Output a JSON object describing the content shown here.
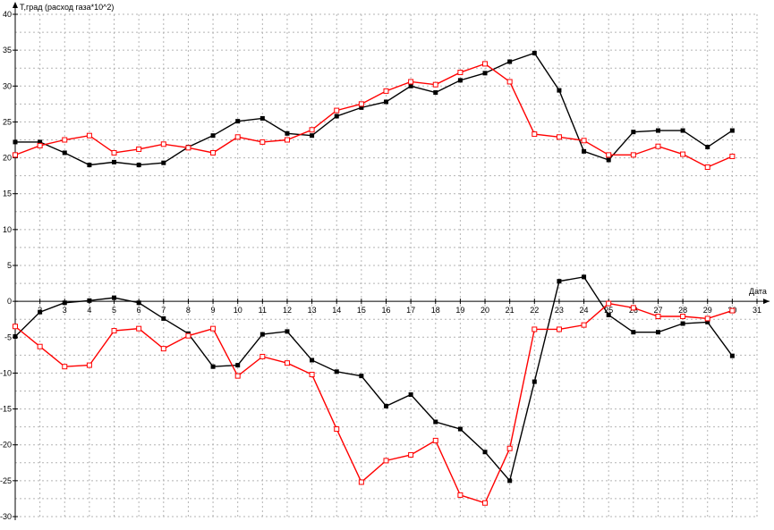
{
  "chart_data": {
    "type": "line",
    "ylabel": "T,град (расход газа*10^2)",
    "xlabel": "Дата",
    "xlim": [
      1,
      31
    ],
    "ylim": [
      -30,
      40
    ],
    "x_ticks": [
      2,
      3,
      4,
      5,
      6,
      7,
      8,
      9,
      10,
      11,
      12,
      13,
      14,
      15,
      16,
      17,
      18,
      19,
      20,
      21,
      22,
      23,
      24,
      25,
      26,
      27,
      28,
      29,
      30,
      31
    ],
    "y_ticks": [
      -30,
      -25,
      -20,
      -15,
      -10,
      -5,
      0,
      5,
      10,
      15,
      20,
      25,
      30,
      35,
      40
    ],
    "y_tick_labels": [
      "-30",
      "-25",
      "-20",
      "-15",
      "-10",
      "-5",
      "0",
      "5",
      "10",
      "15",
      "20",
      "25",
      "30",
      "35",
      "40"
    ],
    "grid": true,
    "series": [
      {
        "color": "#000000",
        "marker": "filled-square",
        "x": [
          1,
          2,
          3,
          4,
          5,
          6,
          7,
          8,
          9,
          10,
          11,
          12,
          13,
          14,
          15,
          16,
          17,
          18,
          19,
          20,
          21,
          22,
          23,
          24,
          25,
          26,
          27,
          28,
          29,
          30
        ],
        "y": [
          22.2,
          22.2,
          20.7,
          19.0,
          19.4,
          19.0,
          19.3,
          21.5,
          23.1,
          25.1,
          25.5,
          23.4,
          23.1,
          25.8,
          27.0,
          27.8,
          30.0,
          29.1,
          30.8,
          31.8,
          33.4,
          34.6,
          29.4,
          20.9,
          19.7,
          23.6,
          23.8,
          23.8,
          21.5,
          23.8
        ]
      },
      {
        "color": "#ff0000",
        "marker": "hollow-square",
        "x": [
          1,
          2,
          3,
          4,
          5,
          6,
          7,
          8,
          9,
          10,
          11,
          12,
          13,
          14,
          15,
          16,
          17,
          18,
          19,
          20,
          21,
          22,
          23,
          24,
          25,
          26,
          27,
          28,
          29,
          30
        ],
        "y": [
          20.4,
          21.7,
          22.5,
          23.1,
          20.7,
          21.2,
          21.9,
          21.4,
          20.7,
          22.9,
          22.2,
          22.5,
          23.9,
          26.6,
          27.5,
          29.3,
          30.6,
          30.2,
          31.9,
          33.1,
          30.6,
          23.3,
          22.9,
          22.4,
          20.4,
          20.4,
          21.6,
          20.5,
          18.7,
          20.2
        ]
      },
      {
        "color": "#000000",
        "marker": "filled-square",
        "x": [
          1,
          2,
          3,
          4,
          5,
          6,
          7,
          8,
          9,
          10,
          11,
          12,
          13,
          14,
          15,
          16,
          17,
          18,
          19,
          20,
          21,
          22,
          23,
          24,
          25,
          26,
          27,
          28,
          29,
          30
        ],
        "y": [
          -4.9,
          -1.5,
          -0.2,
          0.1,
          0.5,
          -0.2,
          -2.4,
          -4.5,
          -9.1,
          -8.9,
          -4.6,
          -4.2,
          -8.2,
          -9.8,
          -10.4,
          -14.6,
          -13.0,
          -16.8,
          -17.8,
          -21.0,
          -25.0,
          -11.2,
          2.8,
          3.4,
          -1.9,
          -4.3,
          -4.3,
          -3.1,
          -2.9,
          -7.6
        ]
      },
      {
        "color": "#ff0000",
        "marker": "hollow-square",
        "x": [
          1,
          2,
          3,
          4,
          5,
          6,
          7,
          8,
          9,
          10,
          11,
          12,
          13,
          14,
          15,
          16,
          17,
          18,
          19,
          20,
          21,
          22,
          23,
          24,
          25,
          26,
          27,
          28,
          29,
          30
        ],
        "y": [
          -3.5,
          -6.3,
          -9.1,
          -8.9,
          -4.1,
          -3.8,
          -6.6,
          -4.8,
          -3.8,
          -10.4,
          -7.7,
          -8.6,
          -10.2,
          -17.8,
          -25.2,
          -22.2,
          -21.4,
          -19.4,
          -27.0,
          -28.1,
          -20.5,
          -3.9,
          -3.9,
          -3.3,
          -0.3,
          -0.9,
          -2.1,
          -2.1,
          -2.4,
          -1.3
        ]
      }
    ]
  }
}
